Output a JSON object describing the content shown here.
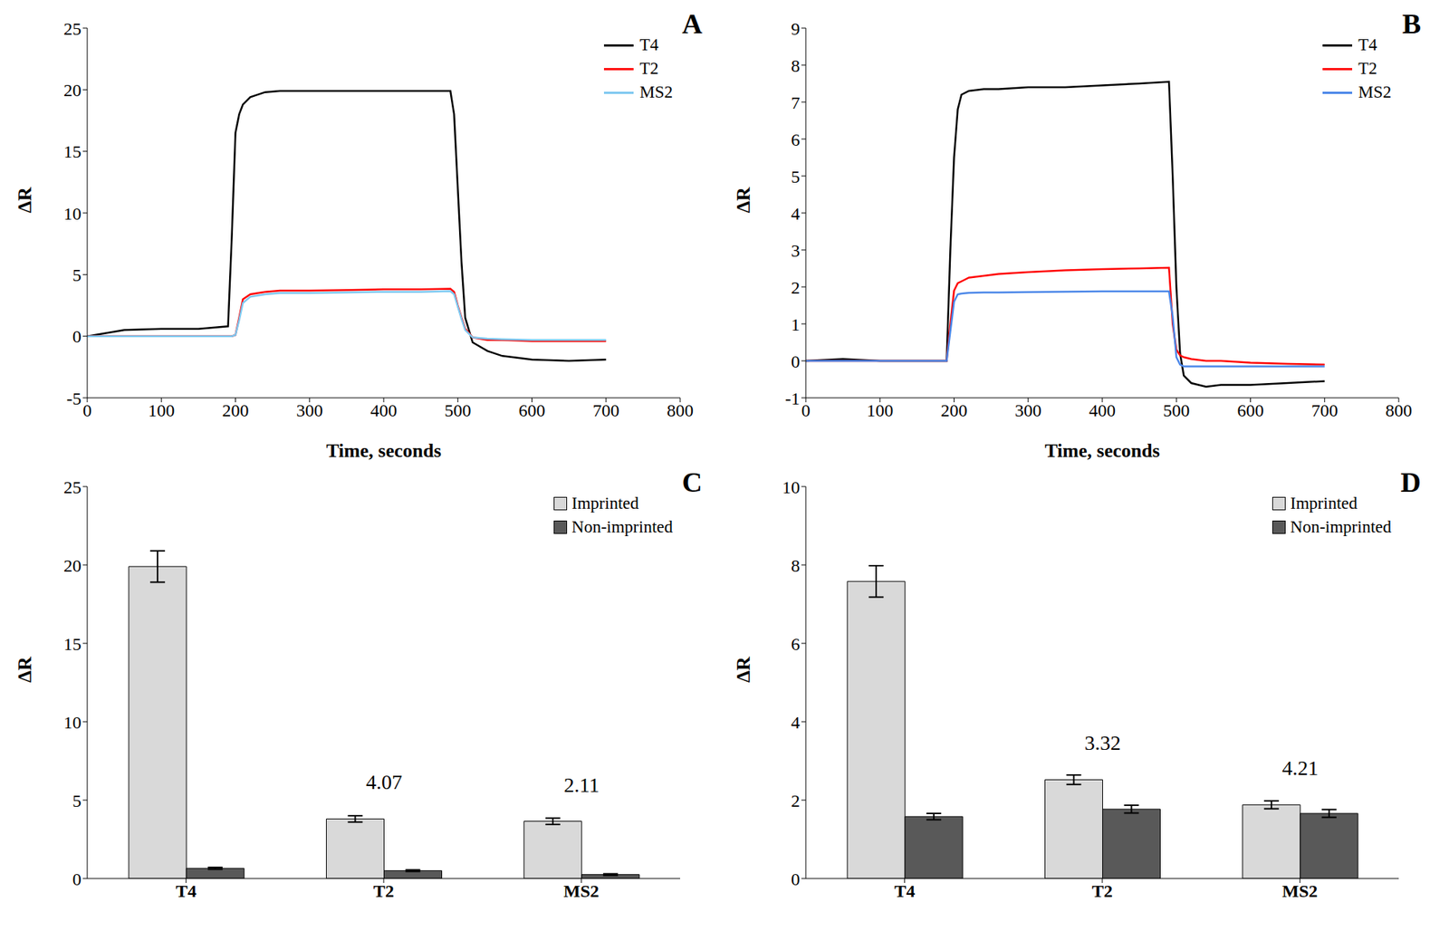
{
  "chart_data": [
    {
      "type": "line",
      "title": "A",
      "xlabel": "Time, seconds",
      "ylabel": "ΔR",
      "legend": "upper right",
      "grid": false,
      "x": [
        0,
        50,
        100,
        150,
        190,
        195,
        200,
        205,
        210,
        220,
        240,
        260,
        300,
        350,
        400,
        450,
        490,
        495,
        500,
        505,
        510,
        520,
        540,
        560,
        600,
        650,
        700
      ],
      "xlim": [
        0,
        800
      ],
      "xticks": [
        0,
        100,
        200,
        300,
        400,
        500,
        600,
        700,
        800
      ],
      "ylim": [
        -5,
        25
      ],
      "yticks": [
        -5,
        0,
        5,
        10,
        15,
        20,
        25
      ],
      "series": [
        {
          "name": "T4",
          "color": "#000000",
          "values": [
            0,
            0.5,
            0.6,
            0.6,
            0.8,
            8,
            16.5,
            18,
            18.8,
            19.4,
            19.8,
            19.9,
            19.9,
            19.9,
            19.9,
            19.9,
            19.9,
            18,
            12,
            6,
            1.5,
            -0.5,
            -1.2,
            -1.6,
            -1.9,
            -2.0,
            -1.9
          ]
        },
        {
          "name": "T2",
          "color": "#ff0000",
          "values": [
            0,
            0,
            0,
            0,
            0,
            0,
            0.1,
            1.5,
            3.0,
            3.4,
            3.6,
            3.7,
            3.7,
            3.75,
            3.8,
            3.8,
            3.85,
            3.6,
            2.5,
            1.5,
            0.6,
            -0.1,
            -0.3,
            -0.3,
            -0.4,
            -0.4,
            -0.4
          ]
        },
        {
          "name": "MS2",
          "color": "#7ec8f0",
          "values": [
            0,
            0,
            0,
            0,
            0,
            0,
            0.1,
            1.3,
            2.7,
            3.2,
            3.4,
            3.5,
            3.5,
            3.55,
            3.6,
            3.6,
            3.65,
            3.4,
            2.4,
            1.4,
            0.5,
            -0.1,
            -0.2,
            -0.25,
            -0.3,
            -0.3,
            -0.3
          ]
        }
      ]
    },
    {
      "type": "line",
      "title": "B",
      "xlabel": "Time, seconds",
      "ylabel": "ΔR",
      "legend": "upper right",
      "grid": false,
      "x": [
        0,
        50,
        100,
        150,
        190,
        195,
        200,
        205,
        210,
        220,
        240,
        260,
        300,
        350,
        400,
        450,
        490,
        495,
        500,
        505,
        510,
        520,
        540,
        560,
        600,
        650,
        700
      ],
      "xlim": [
        0,
        800
      ],
      "xticks": [
        0,
        100,
        200,
        300,
        400,
        500,
        600,
        700,
        800
      ],
      "ylim": [
        -1,
        9
      ],
      "yticks": [
        -1,
        0,
        1,
        2,
        3,
        4,
        5,
        6,
        7,
        8,
        9
      ],
      "series": [
        {
          "name": "T4",
          "color": "#000000",
          "values": [
            0,
            0.05,
            0,
            0,
            0,
            3,
            5.5,
            6.8,
            7.2,
            7.3,
            7.35,
            7.35,
            7.4,
            7.4,
            7.45,
            7.5,
            7.55,
            5,
            2,
            0.2,
            -0.4,
            -0.6,
            -0.7,
            -0.65,
            -0.65,
            -0.6,
            -0.55
          ]
        },
        {
          "name": "T2",
          "color": "#ff0000",
          "values": [
            0,
            0,
            0,
            0,
            0,
            1,
            1.9,
            2.1,
            2.15,
            2.25,
            2.3,
            2.35,
            2.4,
            2.45,
            2.48,
            2.5,
            2.52,
            1.0,
            0.3,
            0.15,
            0.1,
            0.05,
            0,
            0,
            -0.05,
            -0.08,
            -0.1
          ]
        },
        {
          "name": "MS2",
          "color": "#4a86e8",
          "values": [
            0,
            0,
            0,
            0,
            0,
            0.8,
            1.6,
            1.8,
            1.82,
            1.84,
            1.85,
            1.85,
            1.86,
            1.87,
            1.88,
            1.88,
            1.88,
            1.2,
            0.1,
            -0.1,
            -0.15,
            -0.15,
            -0.15,
            -0.15,
            -0.15,
            -0.15,
            -0.15
          ]
        }
      ]
    },
    {
      "type": "bar",
      "title": "C",
      "ylabel": "ΔR",
      "legend": "upper right",
      "grid": false,
      "categories": [
        "T4",
        "T2",
        "MS2"
      ],
      "ylim": [
        0,
        25
      ],
      "yticks": [
        0,
        5,
        10,
        15,
        20,
        25
      ],
      "series": [
        {
          "name": "Imprinted",
          "color": "#d9d9d9",
          "values": [
            19.9,
            3.8,
            3.65
          ],
          "errors": [
            1.0,
            0.2,
            0.2
          ]
        },
        {
          "name": "Non-imprinted",
          "color": "#595959",
          "values": [
            0.65,
            0.5,
            0.25
          ],
          "errors": [
            0.06,
            0.05,
            0.05
          ]
        }
      ],
      "annotations": [
        {
          "category": "T2",
          "text": "4.07"
        },
        {
          "category": "MS2",
          "text": "2.11"
        }
      ]
    },
    {
      "type": "bar",
      "title": "D",
      "ylabel": "ΔR",
      "legend": "upper right",
      "grid": false,
      "categories": [
        "T4",
        "T2",
        "MS2"
      ],
      "ylim": [
        0,
        10
      ],
      "yticks": [
        0,
        2,
        4,
        6,
        8,
        10
      ],
      "series": [
        {
          "name": "Imprinted",
          "color": "#d9d9d9",
          "values": [
            7.58,
            2.52,
            1.88
          ],
          "errors": [
            0.4,
            0.12,
            0.1
          ]
        },
        {
          "name": "Non-imprinted",
          "color": "#595959",
          "values": [
            1.58,
            1.77,
            1.66
          ],
          "errors": [
            0.08,
            0.1,
            0.1
          ]
        }
      ],
      "annotations": [
        {
          "category": "T2",
          "text": "3.32"
        },
        {
          "category": "MS2",
          "text": "4.21"
        }
      ]
    }
  ]
}
